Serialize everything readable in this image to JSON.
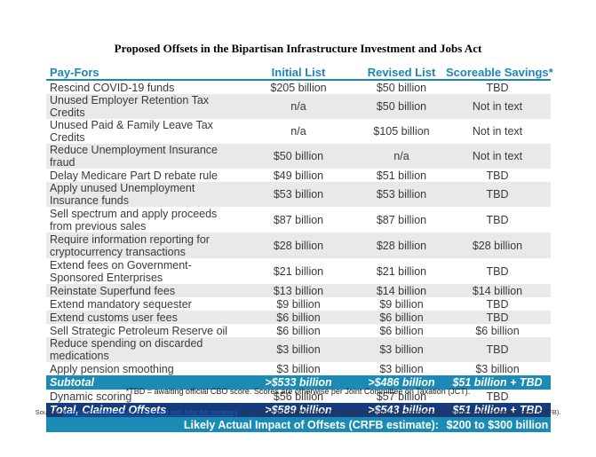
{
  "title": "Proposed Offsets in the Bipartisan Infrastructure Investment and Jobs Act",
  "table": {
    "headers": [
      "Pay-Fors",
      "Initial List",
      "Revised List",
      "Scoreable Savings*"
    ],
    "rows": [
      [
        "Rescind COVID-19 funds",
        "$205 billion",
        "$50 billion",
        "TBD"
      ],
      [
        "Unused Employer Retention Tax Credits",
        "n/a",
        "$50 billion",
        "Not in text"
      ],
      [
        "Unused Paid & Family Leave Tax Credits",
        "n/a",
        "$105 billion",
        "Not in text"
      ],
      [
        "Reduce Unemployment Insurance fraud",
        "$50 billion",
        "n/a",
        "Not in text"
      ],
      [
        "Delay Medicare Part D rebate rule",
        "$49 billion",
        "$51 billion",
        "TBD"
      ],
      [
        "Apply unused Unemployment Insurance funds",
        "$53 billion",
        "$53 billion",
        "TBD"
      ],
      [
        "Sell spectrum and apply proceeds from previous sales",
        "$87 billion",
        "$87 billion",
        "TBD"
      ],
      [
        "Require information reporting for cryptocurrency transactions",
        "$28 billion",
        "$28 billion",
        "$28 billion"
      ],
      [
        "Extend fees on Government-Sponsored Enterprises",
        "$21 billion",
        "$21 billion",
        "TBD"
      ],
      [
        "Reinstate Superfund fees",
        "$13 billion",
        "$14 billion",
        "$14 billion"
      ],
      [
        "Extend mandatory sequester",
        "$9 billion",
        "$9 billion",
        "TBD"
      ],
      [
        "Extend customs user fees",
        "$6 billion",
        "$6 billion",
        "TBD"
      ],
      [
        "Sell Strategic Petroleum Reserve oil",
        "$6 billion",
        "$6 billion",
        "$6 billion"
      ],
      [
        "Reduce spending on discarded medications",
        "$3 billion",
        "$3 billion",
        "TBD"
      ],
      [
        "Apply pension smoothing",
        "$3 billion",
        "$3 billion",
        "$3 billion"
      ]
    ],
    "subtotal": [
      "Subtotal",
      ">$533 billion",
      ">$486 billion",
      "$51 billion + TBD"
    ],
    "dynamic": [
      "Dynamic scoring",
      "$56 billion",
      "$57 billion",
      "TBD"
    ],
    "total": [
      "Total, Claimed Offsets",
      ">$589 billion",
      ">$543 billion",
      "$51 billion + TBD"
    ],
    "impact": {
      "label": "Likely Actual Impact of Offsets (CRFB estimate):",
      "value": "$200 to $300 billion"
    }
  },
  "footnote": "*TBD = awaiting official CBO score. Scores are otherwise per Joint Committee on Taxation (JCT).",
  "sources": {
    "prefix": "Sources: ",
    "link_text": "Bipartisan Infrastructure Investment and Jobs Act summary",
    "suffix": ", SA 2137 to HR 3684 bill text, JCT score of Division H, Committee for a Responsible Federal Budget (CRFB)."
  },
  "colors": {
    "header_text": "#1d86b8",
    "subtotal_bg": "#1b8bb5",
    "total_bg": "#163b7d",
    "stripe_bg": "#e9e9e9",
    "link": "#1a5fb4"
  }
}
